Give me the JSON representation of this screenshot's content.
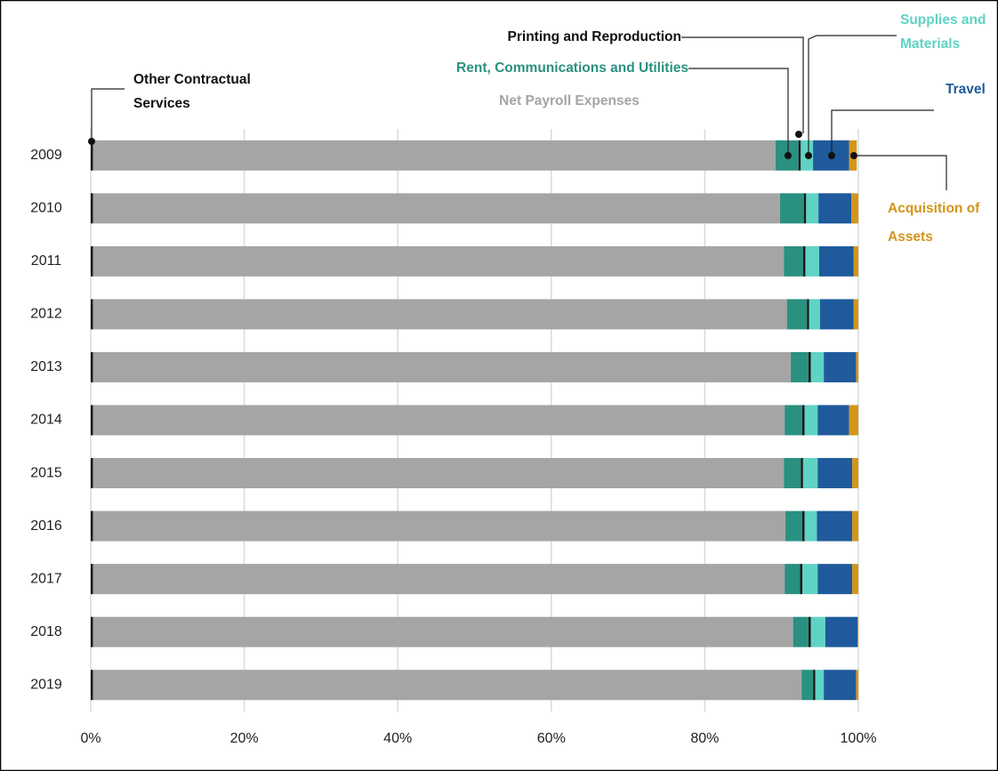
{
  "chart_data": {
    "type": "bar",
    "orientation": "horizontal",
    "stacked": true,
    "categories": [
      "2009",
      "2010",
      "2011",
      "2012",
      "2013",
      "2014",
      "2015",
      "2016",
      "2017",
      "2018",
      "2019"
    ],
    "series": [
      {
        "name": "Other Contractual Services",
        "color": "#1a1a1a",
        "values": [
          0.3,
          0.3,
          0.3,
          0.3,
          0.3,
          0.3,
          0.3,
          0.3,
          0.3,
          0.3,
          0.3
        ]
      },
      {
        "name": "Net Payroll Expenses",
        "color": "#a5a5a5",
        "values": [
          88.9,
          89.5,
          90.0,
          90.4,
          90.9,
          90.1,
          90.0,
          90.2,
          90.1,
          91.2,
          92.3
        ]
      },
      {
        "name": "Rent, Communications and Utilities",
        "color": "#2a9080",
        "values": [
          3.0,
          3.1,
          2.5,
          2.6,
          2.3,
          2.3,
          2.2,
          2.2,
          2.0,
          2.0,
          1.5
        ]
      },
      {
        "name": "Printing and Reproduction",
        "color": "#1a1a1a",
        "values": [
          0.3,
          0.3,
          0.3,
          0.3,
          0.3,
          0.3,
          0.3,
          0.3,
          0.3,
          0.3,
          0.3
        ]
      },
      {
        "name": "Supplies and Materials",
        "color": "#5fd3c4",
        "values": [
          1.6,
          1.6,
          1.8,
          1.4,
          1.7,
          1.7,
          1.9,
          1.6,
          2.0,
          1.9,
          1.1
        ]
      },
      {
        "name": "Travel",
        "color": "#1f5a9c",
        "values": [
          4.7,
          4.3,
          4.5,
          4.4,
          4.2,
          4.1,
          4.5,
          4.6,
          4.5,
          4.2,
          4.2
        ]
      },
      {
        "name": "Acquisition of Assets",
        "color": "#d4951a",
        "values": [
          1.0,
          0.9,
          0.6,
          0.6,
          0.3,
          1.2,
          0.8,
          0.8,
          0.8,
          0.1,
          0.3
        ]
      }
    ],
    "xlim": [
      0,
      100
    ],
    "xticks": [
      {
        "value": 0,
        "label": "0%"
      },
      {
        "value": 20,
        "label": "20%"
      },
      {
        "value": 40,
        "label": "40%"
      },
      {
        "value": 60,
        "label": "60%"
      },
      {
        "value": 80,
        "label": "80%"
      },
      {
        "value": 100,
        "label": "100%"
      }
    ],
    "grid": true
  }
}
